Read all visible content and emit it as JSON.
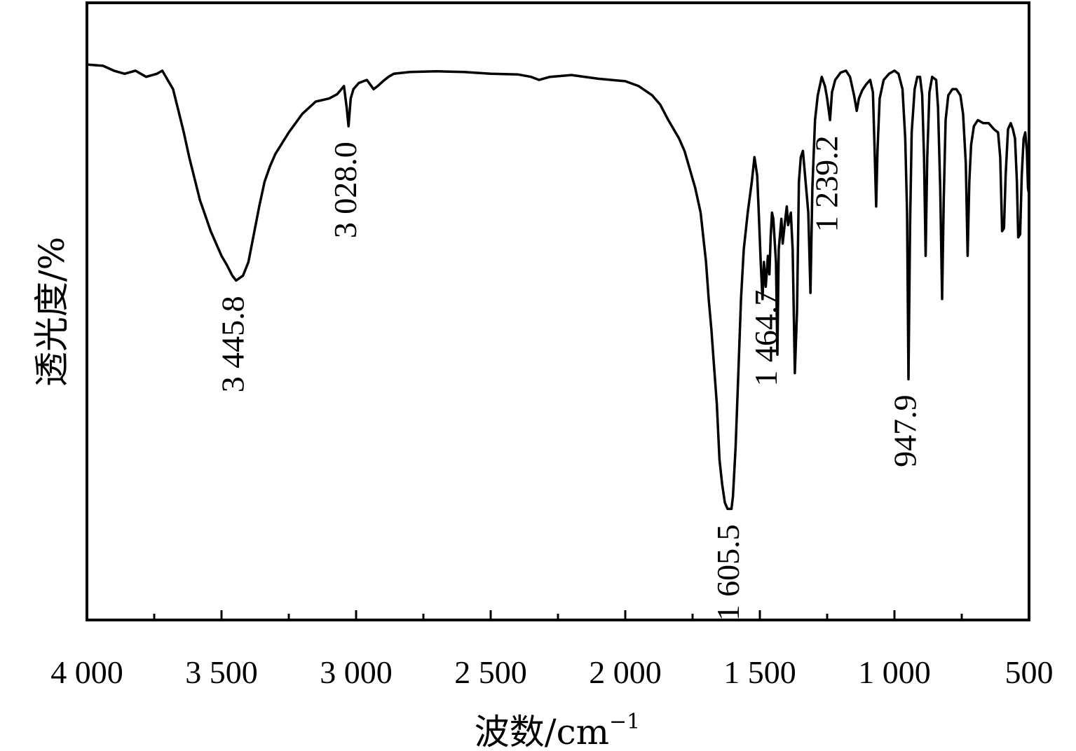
{
  "chart_data": {
    "type": "line",
    "title": "",
    "xlabel": "波数/cm",
    "xlabel_superscript": "−1",
    "ylabel": "透光度/%",
    "xlim": [
      4000,
      500
    ],
    "x_reversed": true,
    "ylim": [
      0,
      100
    ],
    "y_ticks_labeled": false,
    "grid": false,
    "legend": "none",
    "x_ticks": [
      4000,
      3500,
      3000,
      2500,
      2000,
      1500,
      1000,
      500
    ],
    "x_tick_labels": [
      "4 000",
      "3 500",
      "3 000",
      "2 500",
      "2 000",
      "1 500",
      "1 000",
      "500"
    ],
    "x_minor_ticks": [
      3750,
      3250,
      2750,
      2250,
      1750,
      1250,
      750
    ],
    "series": [
      {
        "color": "#000000",
        "points": [
          [
            4000,
            90.0
          ],
          [
            3940,
            89.8
          ],
          [
            3900,
            89.0
          ],
          [
            3860,
            88.5
          ],
          [
            3820,
            89.0
          ],
          [
            3780,
            88.0
          ],
          [
            3740,
            88.5
          ],
          [
            3720,
            89.0
          ],
          [
            3700,
            87.5
          ],
          [
            3680,
            86.0
          ],
          [
            3660,
            82.5
          ],
          [
            3640,
            79.0
          ],
          [
            3620,
            75.0
          ],
          [
            3600,
            71.5
          ],
          [
            3580,
            68.0
          ],
          [
            3560,
            65.5
          ],
          [
            3540,
            63.0
          ],
          [
            3520,
            61.0
          ],
          [
            3500,
            59.0
          ],
          [
            3480,
            57.5
          ],
          [
            3460,
            55.8
          ],
          [
            3445.8,
            55.0
          ],
          [
            3420,
            55.8
          ],
          [
            3400,
            58.0
          ],
          [
            3380,
            62.5
          ],
          [
            3360,
            67.0
          ],
          [
            3340,
            71.0
          ],
          [
            3320,
            73.5
          ],
          [
            3300,
            75.5
          ],
          [
            3250,
            79.0
          ],
          [
            3200,
            82.0
          ],
          [
            3150,
            84.0
          ],
          [
            3100,
            84.5
          ],
          [
            3070,
            85.2
          ],
          [
            3045,
            86.5
          ],
          [
            3035,
            83.0
          ],
          [
            3028,
            80.0
          ],
          [
            3020,
            84.5
          ],
          [
            3010,
            86.0
          ],
          [
            2990,
            87.0
          ],
          [
            2960,
            87.5
          ],
          [
            2935,
            86.0
          ],
          [
            2920,
            86.5
          ],
          [
            2900,
            87.3
          ],
          [
            2880,
            88.0
          ],
          [
            2860,
            88.5
          ],
          [
            2800,
            88.8
          ],
          [
            2700,
            88.9
          ],
          [
            2600,
            88.8
          ],
          [
            2500,
            88.5
          ],
          [
            2400,
            88.4
          ],
          [
            2350,
            88.0
          ],
          [
            2320,
            87.5
          ],
          [
            2280,
            88.0
          ],
          [
            2200,
            88.3
          ],
          [
            2100,
            87.7
          ],
          [
            2000,
            87.3
          ],
          [
            1950,
            86.5
          ],
          [
            1900,
            85.0
          ],
          [
            1870,
            83.5
          ],
          [
            1840,
            81.0
          ],
          [
            1800,
            78.0
          ],
          [
            1780,
            76.0
          ],
          [
            1760,
            73.0
          ],
          [
            1740,
            70.0
          ],
          [
            1720,
            66.0
          ],
          [
            1700,
            58.0
          ],
          [
            1690,
            52.0
          ],
          [
            1680,
            47.0
          ],
          [
            1670,
            41.0
          ],
          [
            1660,
            35.0
          ],
          [
            1650,
            26.0
          ],
          [
            1640,
            22.0
          ],
          [
            1630,
            19.0
          ],
          [
            1620,
            18.0
          ],
          [
            1605.5,
            18.0
          ],
          [
            1600,
            20.0
          ],
          [
            1590,
            28.0
          ],
          [
            1580,
            40.0
          ],
          [
            1570,
            52.0
          ],
          [
            1560,
            60.0
          ],
          [
            1545,
            66.0
          ],
          [
            1530,
            71.0
          ],
          [
            1520,
            75.0
          ],
          [
            1510,
            72.0
          ],
          [
            1503,
            65.0
          ],
          [
            1497,
            58.0
          ],
          [
            1490,
            52.0
          ],
          [
            1485,
            58.0
          ],
          [
            1478,
            54.0
          ],
          [
            1470,
            59.0
          ],
          [
            1464.7,
            56.0
          ],
          [
            1460,
            62.0
          ],
          [
            1455,
            66.0
          ],
          [
            1450,
            65.0
          ],
          [
            1440,
            58.0
          ],
          [
            1435,
            43.0
          ],
          [
            1430,
            60.0
          ],
          [
            1420,
            65.0
          ],
          [
            1415,
            61.0
          ],
          [
            1408,
            64.0
          ],
          [
            1400,
            67.0
          ],
          [
            1395,
            64.0
          ],
          [
            1385,
            66.0
          ],
          [
            1378,
            60.0
          ],
          [
            1370,
            40.0
          ],
          [
            1362,
            50.0
          ],
          [
            1355,
            71.0
          ],
          [
            1348,
            75.0
          ],
          [
            1340,
            76.0
          ],
          [
            1332,
            72.0
          ],
          [
            1320,
            66.0
          ],
          [
            1312,
            53.0
          ],
          [
            1305,
            70.0
          ],
          [
            1295,
            81.0
          ],
          [
            1285,
            85.0
          ],
          [
            1270,
            88.0
          ],
          [
            1258,
            86.5
          ],
          [
            1250,
            84.5
          ],
          [
            1239.2,
            81.0
          ],
          [
            1232,
            85.5
          ],
          [
            1220,
            87.5
          ],
          [
            1200,
            88.7
          ],
          [
            1180,
            89.0
          ],
          [
            1165,
            88.0
          ],
          [
            1150,
            85.0
          ],
          [
            1140,
            82.5
          ],
          [
            1132,
            84.5
          ],
          [
            1120,
            85.8
          ],
          [
            1105,
            86.8
          ],
          [
            1090,
            87.5
          ],
          [
            1080,
            85.5
          ],
          [
            1073,
            75.0
          ],
          [
            1068,
            67.0
          ],
          [
            1063,
            76.0
          ],
          [
            1055,
            84.5
          ],
          [
            1040,
            87.5
          ],
          [
            1020,
            88.5
          ],
          [
            1000,
            89.0
          ],
          [
            985,
            88.5
          ],
          [
            970,
            86.0
          ],
          [
            960,
            78.0
          ],
          [
            953,
            66.0
          ],
          [
            947.9,
            39.0
          ],
          [
            942,
            64.0
          ],
          [
            936,
            79.0
          ],
          [
            925,
            86.0
          ],
          [
            915,
            88.0
          ],
          [
            905,
            88.0
          ],
          [
            897,
            85.0
          ],
          [
            890,
            75.0
          ],
          [
            884,
            59.0
          ],
          [
            878,
            75.0
          ],
          [
            870,
            85.5
          ],
          [
            860,
            88.0
          ],
          [
            845,
            87.5
          ],
          [
            838,
            83.0
          ],
          [
            830,
            70.0
          ],
          [
            823,
            52.0
          ],
          [
            817,
            68.0
          ],
          [
            810,
            81.0
          ],
          [
            800,
            85.0
          ],
          [
            785,
            86.0
          ],
          [
            770,
            86.0
          ],
          [
            755,
            85.0
          ],
          [
            745,
            82.0
          ],
          [
            735,
            74.0
          ],
          [
            728,
            59.0
          ],
          [
            722,
            71.0
          ],
          [
            715,
            77.0
          ],
          [
            705,
            80.0
          ],
          [
            690,
            81.0
          ],
          [
            670,
            80.5
          ],
          [
            650,
            80.5
          ],
          [
            630,
            79.5
          ],
          [
            615,
            79.0
          ],
          [
            607,
            75.0
          ],
          [
            600,
            63.0
          ],
          [
            593,
            63.5
          ],
          [
            587,
            72.0
          ],
          [
            578,
            79.5
          ],
          [
            568,
            80.5
          ],
          [
            560,
            79.5
          ],
          [
            552,
            78.0
          ],
          [
            545,
            71.0
          ],
          [
            540,
            62.0
          ],
          [
            533,
            62.5
          ],
          [
            527,
            72.0
          ],
          [
            520,
            78.0
          ],
          [
            514,
            79.0
          ],
          [
            508,
            76.0
          ],
          [
            504,
            70.0
          ],
          [
            500,
            69.0
          ]
        ]
      }
    ],
    "annotations": [
      {
        "x": 3445.8,
        "text": "3 445.8"
      },
      {
        "x": 3028.0,
        "text": "3 028.0"
      },
      {
        "x": 1605.5,
        "text": "1 605.5"
      },
      {
        "x": 1464.7,
        "text": "1 464.7"
      },
      {
        "x": 1239.2,
        "text": "1 239.2"
      },
      {
        "x": 947.9,
        "text": "947.9"
      }
    ]
  }
}
